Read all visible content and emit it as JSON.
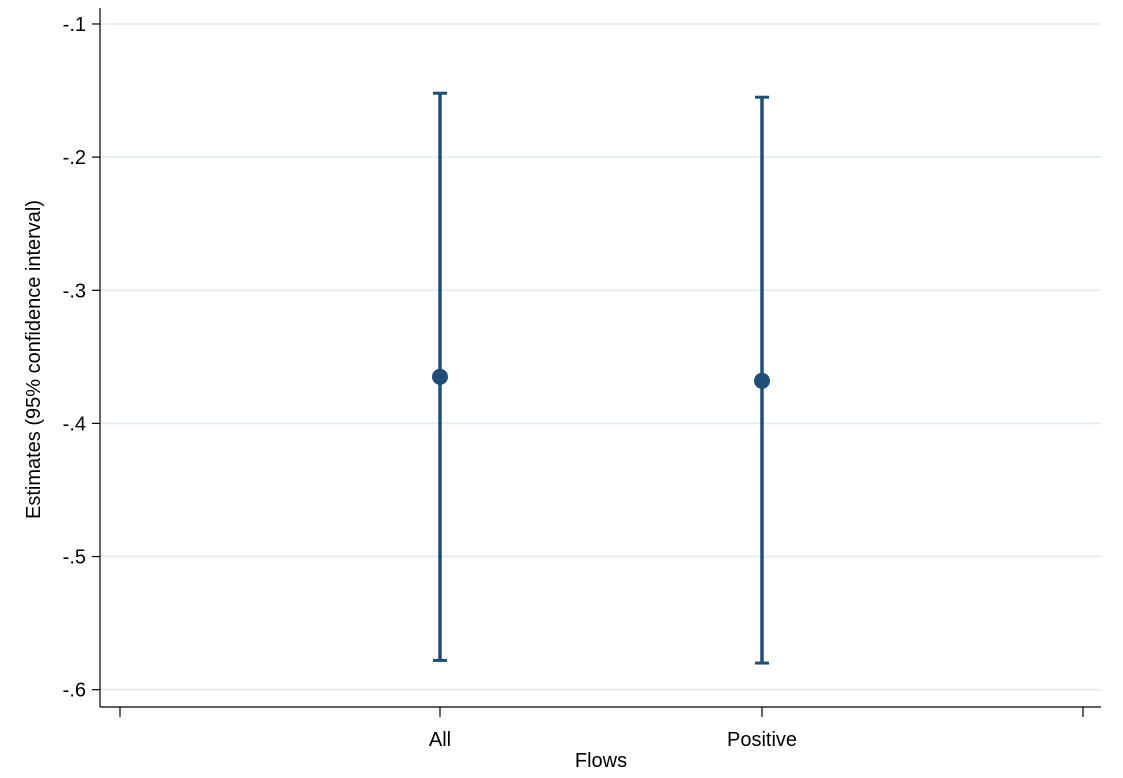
{
  "chart_data": {
    "type": "errorbar",
    "title": "",
    "xlabel": "Flows",
    "ylabel": "Estimates (95% confidence interval)",
    "categories": [
      "All",
      "Positive"
    ],
    "points": [
      {
        "category": "All",
        "estimate": -0.365,
        "ci_low": -0.578,
        "ci_high": -0.152
      },
      {
        "category": "Positive",
        "estimate": -0.368,
        "ci_low": -0.58,
        "ci_high": -0.155
      }
    ],
    "yticks": [
      -0.1,
      -0.2,
      -0.3,
      -0.4,
      -0.5,
      -0.6
    ],
    "ytick_labels": [
      "-.1",
      "-.2",
      "-.3",
      "-.4",
      "-.5",
      "-.6"
    ],
    "ylim": [
      -0.613,
      -0.088
    ],
    "grid": true,
    "legend": "none",
    "colors": {
      "series": "#1f4e79",
      "grid": "#e6efee",
      "axis": "#000000"
    }
  }
}
